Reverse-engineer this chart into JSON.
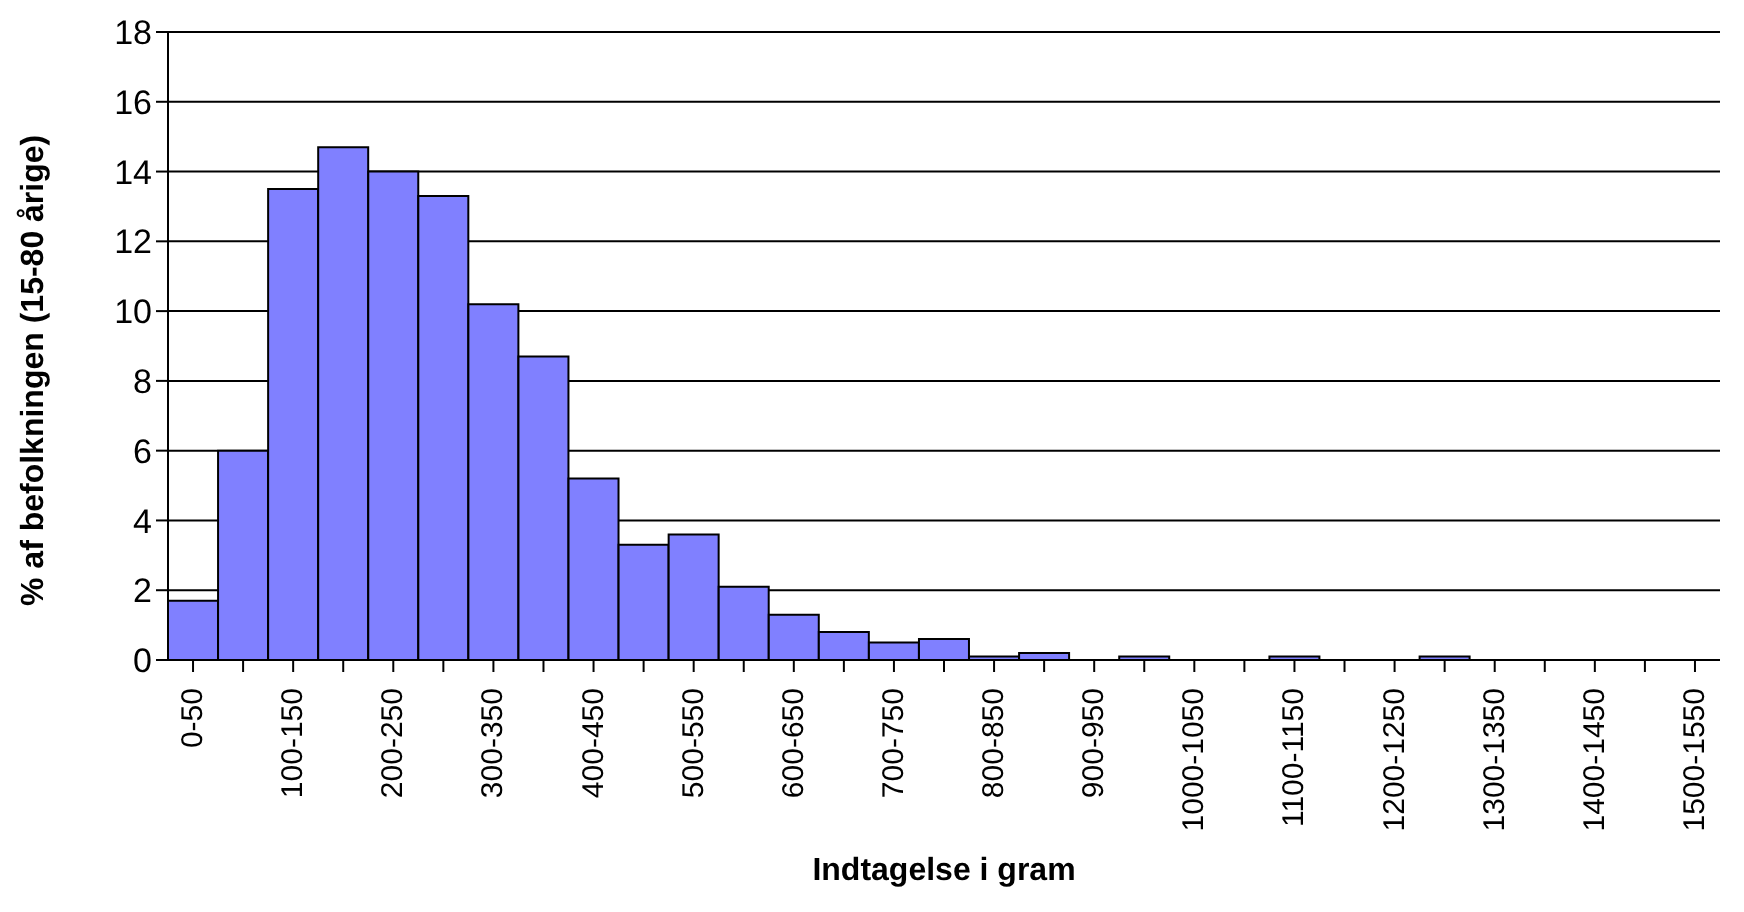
{
  "chart_data": {
    "type": "bar",
    "xlabel": "Indtagelse i gram",
    "ylabel": "% af befolkningen (15-80 årige)",
    "categories": [
      "0-50",
      null,
      "100-150",
      null,
      "200-250",
      null,
      "300-350",
      null,
      "400-450",
      null,
      "500-550",
      null,
      "600-650",
      null,
      "700-750",
      null,
      "800-850",
      null,
      "900-950",
      null,
      "1000-1050",
      null,
      "1100-1150",
      null,
      "1200-1250",
      null,
      "1300-1350",
      null,
      "1400-1450",
      null,
      "1500-1550"
    ],
    "values": [
      1.7,
      6.0,
      13.5,
      14.7,
      14.0,
      13.3,
      10.2,
      8.7,
      5.2,
      3.3,
      3.6,
      2.1,
      1.3,
      0.8,
      0.5,
      0.6,
      0.1,
      0.2,
      0,
      0.1,
      0,
      0,
      0.1,
      0,
      0,
      0.1,
      0,
      0,
      0,
      0,
      0
    ],
    "color": "#8080ff",
    "ylim": [
      0,
      18
    ],
    "yticks": [
      0,
      2,
      4,
      6,
      8,
      10,
      12,
      14,
      16,
      18
    ],
    "grid": "y"
  }
}
